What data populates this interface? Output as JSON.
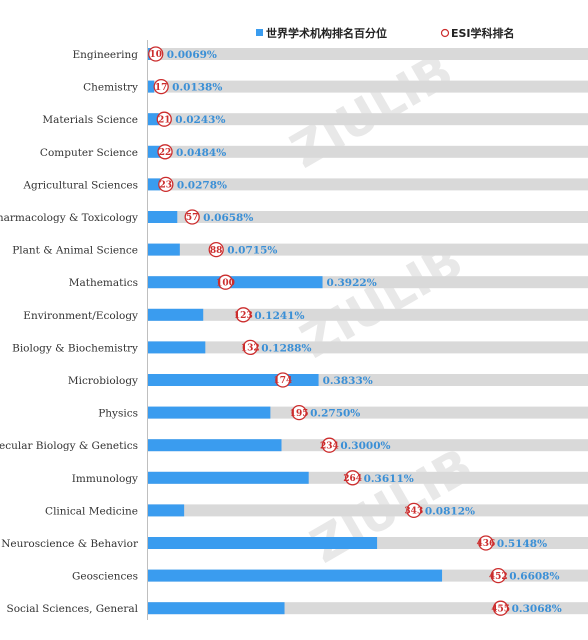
{
  "chart_data": {
    "type": "bar",
    "legend": {
      "position": "top-right",
      "percentile_label": "世界学术机构排名百分位",
      "rank_label": "ESI学科排名"
    },
    "watermark": "ZIULIB",
    "colors": {
      "bar": "#3a9cef",
      "track": "#d9d9d9",
      "percent_text": "#3a8fd6",
      "rank_circle": "#cc2d2d"
    },
    "categories": [
      "Engineering",
      "Chemistry",
      "Materials Science",
      "Computer Science",
      "Agricultural Sciences",
      "Pharmacology & Toxicology",
      "Plant & Animal Science",
      "Mathematics",
      "Environment/Ecology",
      "Biology & Biochemistry",
      "Microbiology",
      "Physics",
      "Molecular Biology & Genetics",
      "Immunology",
      "Clinical Medicine",
      "Neuroscience & Behavior",
      "Geosciences",
      "Social Sciences, General"
    ],
    "percentile": [
      0.0069,
      0.0138,
      0.0243,
      0.0484,
      0.0278,
      0.0658,
      0.0715,
      0.3922,
      0.1241,
      0.1288,
      0.3833,
      0.275,
      0.3,
      0.3611,
      0.0812,
      0.5148,
      0.6608,
      0.3068
    ],
    "percentile_labels": [
      "0.0069%",
      "0.0138%",
      "0.0243%",
      "0.0484%",
      "0.0278%",
      "0.0658%",
      "0.0715%",
      "0.3922%",
      "0.1241%",
      "0.1288%",
      "0.3833%",
      "0.2750%",
      "0.3000%",
      "0.3611%",
      "0.0812%",
      "0.5148%",
      "0.6608%",
      "0.3068%"
    ],
    "esi_rank": [
      10,
      17,
      21,
      22,
      23,
      57,
      88,
      100,
      123,
      132,
      174,
      195,
      234,
      264,
      343,
      436,
      452,
      455
    ],
    "x_range": [
      0,
      1.0
    ]
  }
}
